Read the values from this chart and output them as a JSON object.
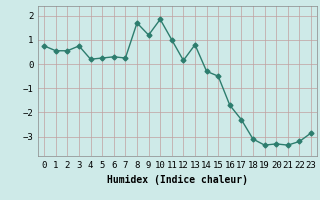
{
  "title": "",
  "xlabel": "Humidex (Indice chaleur)",
  "ylabel": "",
  "x": [
    0,
    1,
    2,
    3,
    4,
    5,
    6,
    7,
    8,
    9,
    10,
    11,
    12,
    13,
    14,
    15,
    16,
    17,
    18,
    19,
    20,
    21,
    22,
    23
  ],
  "y": [
    0.75,
    0.55,
    0.55,
    0.75,
    0.2,
    0.25,
    0.3,
    0.25,
    1.7,
    1.2,
    1.85,
    1.0,
    0.15,
    0.8,
    -0.3,
    -0.5,
    -1.7,
    -2.3,
    -3.1,
    -3.35,
    -3.3,
    -3.35,
    -3.2,
    -2.85
  ],
  "line_color": "#2d7d6e",
  "marker": "D",
  "marker_size": 2.5,
  "line_width": 1.0,
  "bg_color": "#ceeae8",
  "grid_color": "#c0a0a0",
  "ylim": [
    -3.8,
    2.4
  ],
  "yticks": [
    -3,
    -2,
    -1,
    0,
    1,
    2
  ],
  "xlim": [
    -0.5,
    23.5
  ],
  "xlabel_fontsize": 7,
  "tick_fontsize": 6.5,
  "title_fontsize": 7
}
